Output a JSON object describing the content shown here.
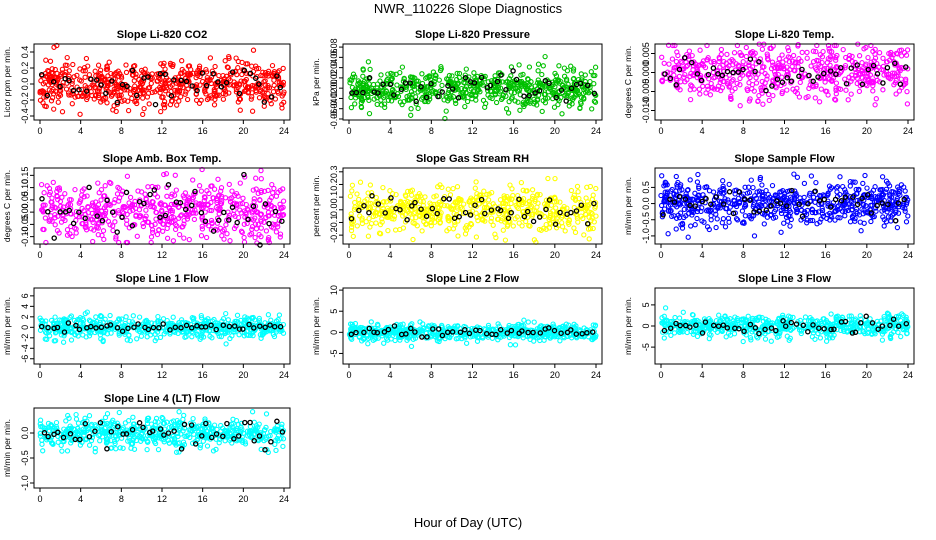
{
  "figure": {
    "title": "NWR_110226  Slope Diagnostics",
    "xlabel": "Hour of Day (UTC)"
  },
  "chart_data": [
    {
      "type": "scatter",
      "title": "Slope Li-820 CO2",
      "ylabel": "Licor ppm per min.",
      "color": "#ff0000",
      "xlim": [
        0,
        24
      ],
      "xticks": [
        0,
        4,
        8,
        12,
        16,
        20,
        24
      ],
      "ylim": [
        -0.45,
        0.5
      ],
      "yticks": [
        -0.4,
        -0.2,
        0.0,
        0.2,
        0.4
      ],
      "yticklabels": [
        "-0.4",
        "-0.2",
        "0.0",
        "0.2",
        "0.4"
      ],
      "spread": 0.15,
      "black_spread": 0.12,
      "n_points": 620,
      "n_black": 46,
      "seed": 11
    },
    {
      "type": "scatter",
      "title": "Slope Li-820 Pressure",
      "ylabel": "kPa per min.",
      "color": "#00c000",
      "xlim": [
        0,
        24
      ],
      "xticks": [
        0,
        4,
        8,
        12,
        16,
        20,
        24
      ],
      "ylim": [
        -0.062,
        0.086
      ],
      "yticks": [
        -0.06,
        -0.04,
        -0.02,
        0.0,
        0.02,
        0.04,
        0.06,
        0.08
      ],
      "yticklabels": [
        "-0.06",
        "-0.04",
        "-0.02",
        "0.00",
        "0.02",
        "0.04",
        "0.06",
        "0.08"
      ],
      "spread": 0.018,
      "black_spread": 0.015,
      "n_points": 620,
      "n_black": 46,
      "seed": 23
    },
    {
      "type": "scatter",
      "title": "Slope Li-820 Temp.",
      "ylabel": "degrees C per min.",
      "color": "#ff00ff",
      "xlim": [
        0,
        24
      ],
      "xticks": [
        0,
        4,
        8,
        12,
        16,
        20,
        24
      ],
      "ylim": [
        -0.0125,
        0.0075
      ],
      "yticks": [
        -0.01,
        -0.005,
        0.0,
        0.005
      ],
      "yticklabels": [
        "-0.010",
        "-0.005",
        "0.000",
        "0.005"
      ],
      "spread": 0.0035,
      "black_spread": 0.0025,
      "n_points": 560,
      "n_black": 46,
      "seed": 37
    },
    {
      "type": "scatter",
      "title": "Slope Amb. Box Temp.",
      "ylabel": "degrees C per min.",
      "color": "#ff00ff",
      "xlim": [
        0,
        24
      ],
      "xticks": [
        0,
        4,
        8,
        12,
        16,
        20,
        24
      ],
      "ylim": [
        -0.13,
        0.18
      ],
      "yticks": [
        -0.1,
        -0.05,
        0.0,
        0.05,
        0.1,
        0.15
      ],
      "yticklabels": [
        "-0.10",
        "-0.05",
        "0.00",
        "0.05",
        "0.10",
        "0.15"
      ],
      "spread": 0.06,
      "black_spread": 0.05,
      "n_points": 560,
      "n_black": 46,
      "seed": 41
    },
    {
      "type": "scatter",
      "title": "Slope Gas Stream RH",
      "ylabel": "percent per min.",
      "color": "#ffff00",
      "xlim": [
        0,
        24
      ],
      "xticks": [
        0,
        4,
        8,
        12,
        16,
        20,
        24
      ],
      "ylim": [
        -0.27,
        0.33
      ],
      "yticks": [
        -0.2,
        -0.1,
        0.0,
        0.1,
        0.2,
        0.3
      ],
      "yticklabels": [
        "-0.2",
        "-0.1",
        "0.0",
        "0.1",
        "0.2",
        "0.3"
      ],
      "spread": 0.09,
      "black_spread": 0.07,
      "n_points": 560,
      "n_black": 46,
      "seed": 53
    },
    {
      "type": "scatter",
      "title": "Slope Sample Flow",
      "ylabel": "ml/min per min.",
      "color": "#0000ff",
      "xlim": [
        0,
        24
      ],
      "xticks": [
        0,
        4,
        8,
        12,
        16,
        20,
        24
      ],
      "ylim": [
        -1.25,
        1.1
      ],
      "yticks": [
        -1.0,
        -0.5,
        0.0,
        0.5
      ],
      "yticklabels": [
        "-1.0",
        "-0.5",
        "0.0",
        "0.5"
      ],
      "spread": 0.32,
      "black_spread": 0.22,
      "n_points": 620,
      "n_black": 46,
      "seed": 67
    },
    {
      "type": "scatter",
      "title": "Slope Line 1 Flow",
      "ylabel": "ml/min per min.",
      "color": "#00ffff",
      "xlim": [
        0,
        24
      ],
      "xticks": [
        0,
        4,
        8,
        12,
        16,
        20,
        24
      ],
      "ylim": [
        -7,
        7.5
      ],
      "yticks": [
        -6,
        -4,
        -2,
        0,
        2,
        4,
        6
      ],
      "yticklabels": [
        "-6",
        "-4",
        "-2",
        "0",
        "2",
        "4",
        "6"
      ],
      "spread": 1.0,
      "black_spread": 0.35,
      "n_points": 560,
      "n_black": 46,
      "seed": 71
    },
    {
      "type": "scatter",
      "title": "Slope Line 2 Flow",
      "ylabel": "ml/min per min.",
      "color": "#00ffff",
      "xlim": [
        0,
        24
      ],
      "xticks": [
        0,
        4,
        8,
        12,
        16,
        20,
        24
      ],
      "ylim": [
        -7.5,
        10.5
      ],
      "yticks": [
        -5,
        0,
        5,
        10
      ],
      "yticklabels": [
        "-5",
        "0",
        "5",
        "10"
      ],
      "spread": 1.0,
      "black_spread": 0.6,
      "n_points": 560,
      "n_black": 46,
      "seed": 83
    },
    {
      "type": "scatter",
      "title": "Slope Line 3 Flow",
      "ylabel": "ml/min per min.",
      "color": "#00ffff",
      "xlim": [
        0,
        24
      ],
      "xticks": [
        0,
        4,
        8,
        12,
        16,
        20,
        24
      ],
      "ylim": [
        -9,
        9
      ],
      "yticks": [
        -5,
        0,
        5
      ],
      "yticklabels": [
        "-5",
        "0",
        "5"
      ],
      "spread": 1.4,
      "black_spread": 1.0,
      "n_points": 560,
      "n_black": 46,
      "seed": 97
    },
    {
      "type": "scatter",
      "title": "Slope Line 4 (LT) Flow",
      "ylabel": "ml/min per min.",
      "color": "#00ffff",
      "xlim": [
        0,
        24
      ],
      "xticks": [
        0,
        4,
        8,
        12,
        16,
        20,
        24
      ],
      "ylim": [
        -1.1,
        0.5
      ],
      "yticks": [
        -1.0,
        -0.5,
        0.0
      ],
      "yticklabels": [
        "-1.0",
        "-0.5",
        "0.0"
      ],
      "spread": 0.15,
      "black_spread": 0.12,
      "n_points": 560,
      "n_black": 46,
      "seed": 101
    }
  ]
}
